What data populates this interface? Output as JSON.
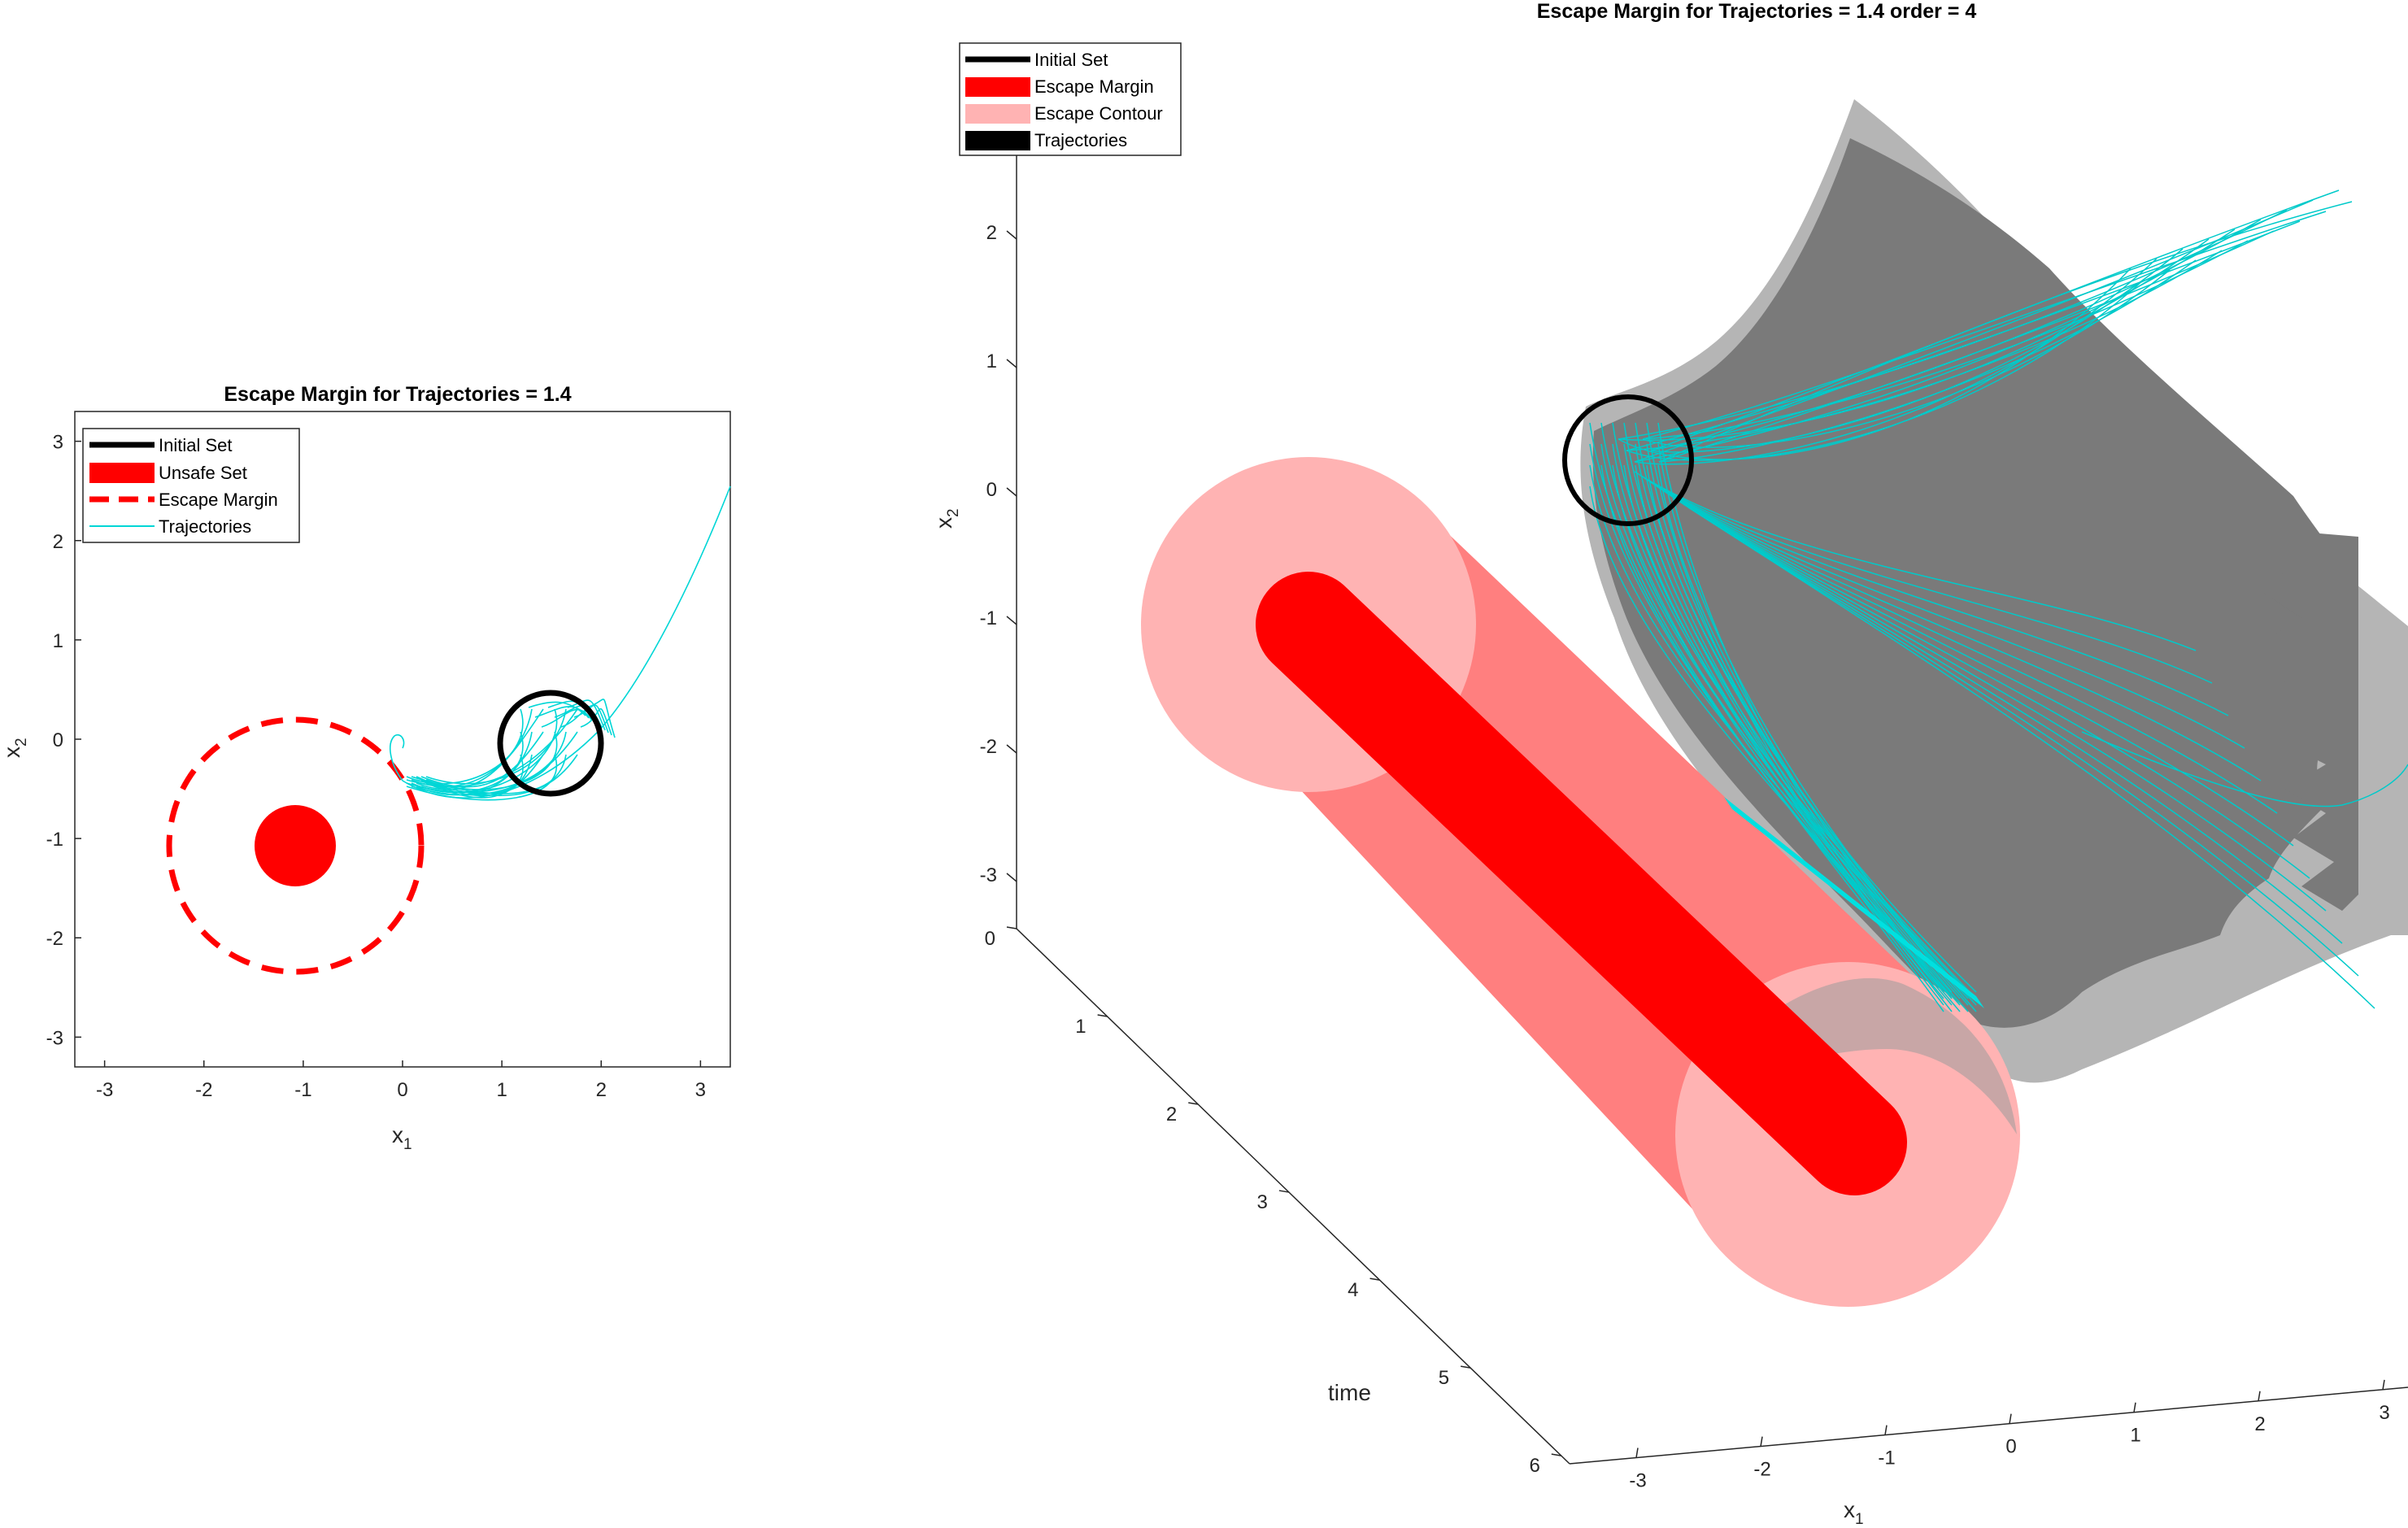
{
  "colors": {
    "unsafe": "#ff0000",
    "escape_contour": "#ffb3b3",
    "tube": "#ff7f7f",
    "trajectory": "#00d6d6",
    "initial_set": "#000000",
    "surface_dark": "#7a7a7a",
    "surface_light": "#b5b5b5"
  },
  "chart_data": [
    {
      "type": "line",
      "title": "Escape Margin for Trajectories = 1.4",
      "xlabel": "x",
      "xlabel_sub": "1",
      "ylabel": "x",
      "ylabel_sub": "2",
      "xlim": [
        -3.3,
        3.3
      ],
      "ylim": [
        -3.3,
        3.3
      ],
      "xticks": [
        -3,
        -2,
        -1,
        0,
        1,
        2,
        3
      ],
      "yticks": [
        -3,
        -2,
        -1,
        0,
        1,
        2,
        3
      ],
      "xtick_labels": [
        "-3",
        "-2",
        "-1",
        "0",
        "1",
        "2",
        "3"
      ],
      "ytick_labels": [
        "-3",
        "-2",
        "-1",
        "0",
        "1",
        "2",
        "3"
      ],
      "legend": [
        "Initial Set",
        "Unsafe Set",
        "Escape Margin",
        "Trajectories"
      ],
      "legend_position": "top-left",
      "initial_set": {
        "cx": 1.5,
        "cy": 0.0,
        "r": 0.5
      },
      "unsafe_set": {
        "cx": -1.0,
        "cy": -1.0,
        "r": 0.4
      },
      "escape_margin": {
        "cx": -1.0,
        "cy": -1.0,
        "r": 1.25
      },
      "trajectory_ends": [
        [
          -0.05,
          0.05
        ],
        [
          3.25,
          2.5
        ]
      ]
    },
    {
      "type": "line",
      "title": "Escape Margin for Trajectories = 1.4 order = 4",
      "xlabel": "x",
      "xlabel_sub": "1",
      "ylabel": "x",
      "ylabel_sub": "2",
      "zlabel": "time",
      "xticks": [
        -3,
        -2,
        -1,
        0,
        1,
        2,
        3
      ],
      "xtick_labels": [
        "-3",
        "-2",
        "-1",
        "0",
        "1",
        "2",
        "3"
      ],
      "yticks": [
        -3,
        -2,
        -1,
        0,
        1,
        2
      ],
      "ytick_labels": [
        "-3",
        "-2",
        "-1",
        "0",
        "1",
        "2"
      ],
      "tticks": [
        0,
        1,
        2,
        3,
        4,
        5,
        6
      ],
      "ttick_labels": [
        "0",
        "1",
        "2",
        "3",
        "4",
        "5",
        "6"
      ],
      "tlim": [
        0,
        6
      ],
      "legend": [
        "Initial Set",
        "Escape Margin",
        "Escape Contour",
        "Trajectories"
      ],
      "legend_position": "top-left"
    }
  ]
}
